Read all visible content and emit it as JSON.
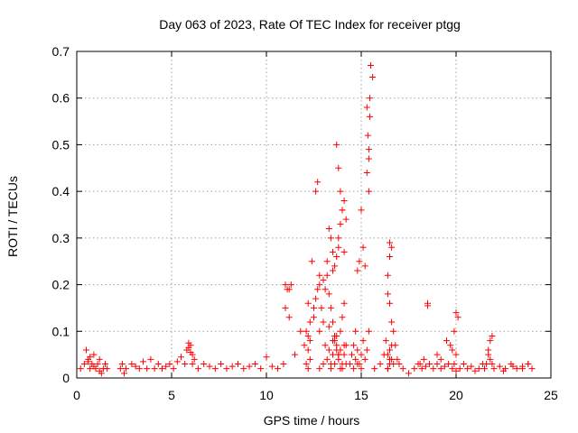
{
  "chart_data": {
    "type": "scatter",
    "title": "Day 063 of 2023, Rate Of TEC Index for receiver ptgg",
    "xlabel": "GPS time / hours",
    "ylabel": "ROTI / TECUs",
    "xlim": [
      0,
      25
    ],
    "ylim": [
      0,
      0.7
    ],
    "xticks": [
      0,
      5,
      10,
      15,
      20,
      25
    ],
    "xtick_labels": [
      "0",
      "5",
      "10",
      "15",
      "20",
      "25"
    ],
    "yticks": [
      0,
      0.1,
      0.2,
      0.3,
      0.4,
      0.5,
      0.6,
      0.7
    ],
    "ytick_labels": [
      "0",
      "0.1",
      "0.2",
      "0.3",
      "0.4",
      "0.5",
      "0.6",
      "0.7"
    ],
    "grid": true,
    "marker": "+",
    "color": "#ff0000",
    "series": [
      {
        "name": "ROTI",
        "x": [
          0.2,
          0.4,
          0.5,
          0.6,
          0.7,
          0.8,
          0.9,
          1.0,
          1.1,
          1.2,
          1.3,
          1.4,
          1.5,
          1.6,
          0.6,
          0.7,
          0.9,
          1.2,
          2.3,
          2.4,
          2.5,
          2.6,
          2.9,
          3.1,
          3.3,
          3.5,
          3.7,
          3.9,
          4.1,
          4.3,
          4.5,
          4.7,
          4.9,
          5.1,
          5.3,
          5.5,
          5.7,
          5.8,
          5.9,
          6.0,
          6.1,
          6.2,
          5.9,
          6.0,
          6.1,
          6.4,
          6.7,
          7.0,
          7.3,
          7.6,
          7.9,
          8.2,
          8.5,
          8.8,
          9.1,
          9.4,
          9.7,
          10.0,
          10.3,
          10.6,
          10.9,
          11.0,
          11.1,
          11.2,
          11.3,
          11.0,
          11.2,
          11.5,
          11.8,
          12.0,
          12.1,
          12.2,
          12.3,
          12.4,
          12.5,
          12.6,
          12.7,
          12.8,
          12.9,
          12.2,
          12.3,
          12.1,
          12.2,
          12.2,
          12.3,
          12.5,
          12.6,
          12.7,
          12.8,
          13.0,
          13.1,
          13.2,
          13.3,
          13.4,
          13.5,
          13.6,
          13.7,
          13.8,
          13.9,
          14.0,
          14.1,
          14.2,
          13.3,
          13.4,
          13.5,
          13.6,
          13.7,
          13.8,
          13.9,
          14.0,
          14.1,
          13.7,
          13.8,
          13.9,
          14.0,
          13.4,
          13.5,
          13.6,
          13.7,
          13.8,
          13.9,
          14.0,
          14.1,
          14.2,
          13.2,
          13.5,
          13.8,
          14.1,
          12.8,
          13.0,
          13.3,
          13.6,
          12.8,
          13.0,
          13.2,
          13.4,
          13.6,
          13.8,
          14.0,
          14.2,
          13.1,
          13.3,
          13.5,
          13.7,
          13.9,
          14.1,
          14.4,
          14.5,
          14.6,
          14.7,
          14.8,
          14.9,
          15.0,
          15.1,
          15.2,
          14.6,
          14.8,
          15.0,
          15.1,
          15.2,
          15.3,
          15.4,
          15.3,
          15.4,
          15.4,
          15.35,
          15.45,
          15.45,
          14.7,
          14.8,
          14.9,
          15.0,
          15.5,
          15.6,
          15.3,
          15.4,
          15.7,
          16.0,
          16.2,
          16.3,
          16.4,
          16.5,
          16.6,
          16.7,
          16.8,
          16.9,
          17.0,
          16.4,
          16.5,
          16.6,
          16.5,
          16.4,
          16.5,
          16.6,
          16.4,
          16.5,
          16.6,
          16.7,
          16.4,
          16.5,
          17.2,
          17.5,
          17.8,
          18.0,
          18.2,
          18.4,
          18.6,
          18.8,
          19.0,
          19.2,
          19.4,
          19.6,
          19.8,
          20.0,
          20.2,
          20.4,
          20.6,
          20.8,
          21.0,
          21.2,
          21.4,
          18.5,
          18.5,
          18.1,
          18.3,
          19.0,
          19.2,
          19.5,
          19.7,
          19.9,
          20.0,
          20.1,
          19.8,
          19.9,
          20.0,
          21.5,
          21.6,
          21.7,
          21.8,
          21.9,
          21.7,
          21.8,
          21.9,
          22.0,
          22.3,
          22.6,
          22.9,
          23.2,
          23.5,
          23.8,
          24.0,
          22.5,
          23.0,
          23.5,
          23.8
        ],
        "y": [
          0.02,
          0.03,
          0.06,
          0.04,
          0.02,
          0.03,
          0.05,
          0.02,
          0.03,
          0.04,
          0.01,
          0.02,
          0.03,
          0.02,
          0.035,
          0.045,
          0.025,
          0.015,
          0.02,
          0.03,
          0.01,
          0.02,
          0.03,
          0.025,
          0.02,
          0.035,
          0.02,
          0.04,
          0.02,
          0.03,
          0.02,
          0.025,
          0.03,
          0.02,
          0.035,
          0.045,
          0.03,
          0.06,
          0.075,
          0.07,
          0.05,
          0.04,
          0.065,
          0.055,
          0.03,
          0.02,
          0.03,
          0.025,
          0.02,
          0.03,
          0.02,
          0.025,
          0.03,
          0.02,
          0.025,
          0.03,
          0.02,
          0.045,
          0.025,
          0.02,
          0.03,
          0.2,
          0.19,
          0.19,
          0.2,
          0.15,
          0.13,
          0.05,
          0.1,
          0.07,
          0.1,
          0.16,
          0.08,
          0.25,
          0.13,
          0.4,
          0.42,
          0.2,
          0.15,
          0.06,
          0.04,
          0.03,
          0.02,
          0.09,
          0.12,
          0.15,
          0.17,
          0.19,
          0.22,
          0.21,
          0.19,
          0.25,
          0.32,
          0.3,
          0.27,
          0.24,
          0.26,
          0.3,
          0.33,
          0.36,
          0.38,
          0.34,
          0.18,
          0.15,
          0.12,
          0.09,
          0.07,
          0.05,
          0.1,
          0.13,
          0.16,
          0.5,
          0.45,
          0.4,
          0.36,
          0.03,
          0.05,
          0.08,
          0.06,
          0.04,
          0.02,
          0.03,
          0.05,
          0.07,
          0.22,
          0.23,
          0.28,
          0.27,
          0.1,
          0.12,
          0.11,
          0.09,
          0.02,
          0.03,
          0.04,
          0.02,
          0.03,
          0.05,
          0.02,
          0.03,
          0.07,
          0.06,
          0.08,
          0.09,
          0.06,
          0.07,
          0.03,
          0.05,
          0.07,
          0.1,
          0.23,
          0.25,
          0.36,
          0.28,
          0.24,
          0.02,
          0.03,
          0.05,
          0.08,
          0.04,
          0.06,
          0.1,
          0.44,
          0.47,
          0.49,
          0.52,
          0.56,
          0.6,
          0.04,
          0.06,
          0.03,
          0.02,
          0.67,
          0.645,
          0.58,
          0.4,
          0.02,
          0.03,
          0.05,
          0.08,
          0.18,
          0.16,
          0.12,
          0.1,
          0.07,
          0.04,
          0.03,
          0.22,
          0.26,
          0.28,
          0.29,
          0.02,
          0.03,
          0.04,
          0.05,
          0.06,
          0.07,
          0.03,
          0.02,
          0.04,
          0.02,
          0.01,
          0.02,
          0.03,
          0.02,
          0.025,
          0.03,
          0.02,
          0.03,
          0.02,
          0.025,
          0.03,
          0.02,
          0.015,
          0.02,
          0.03,
          0.02,
          0.025,
          0.015,
          0.02,
          0.03,
          0.16,
          0.155,
          0.03,
          0.04,
          0.05,
          0.04,
          0.08,
          0.07,
          0.1,
          0.14,
          0.13,
          0.06,
          0.03,
          0.05,
          0.02,
          0.03,
          0.06,
          0.08,
          0.09,
          0.05,
          0.04,
          0.03,
          0.02,
          0.025,
          0.02,
          0.03,
          0.02,
          0.025,
          0.03,
          0.02,
          0.015,
          0.025,
          0.02,
          0.03
        ]
      }
    ]
  }
}
